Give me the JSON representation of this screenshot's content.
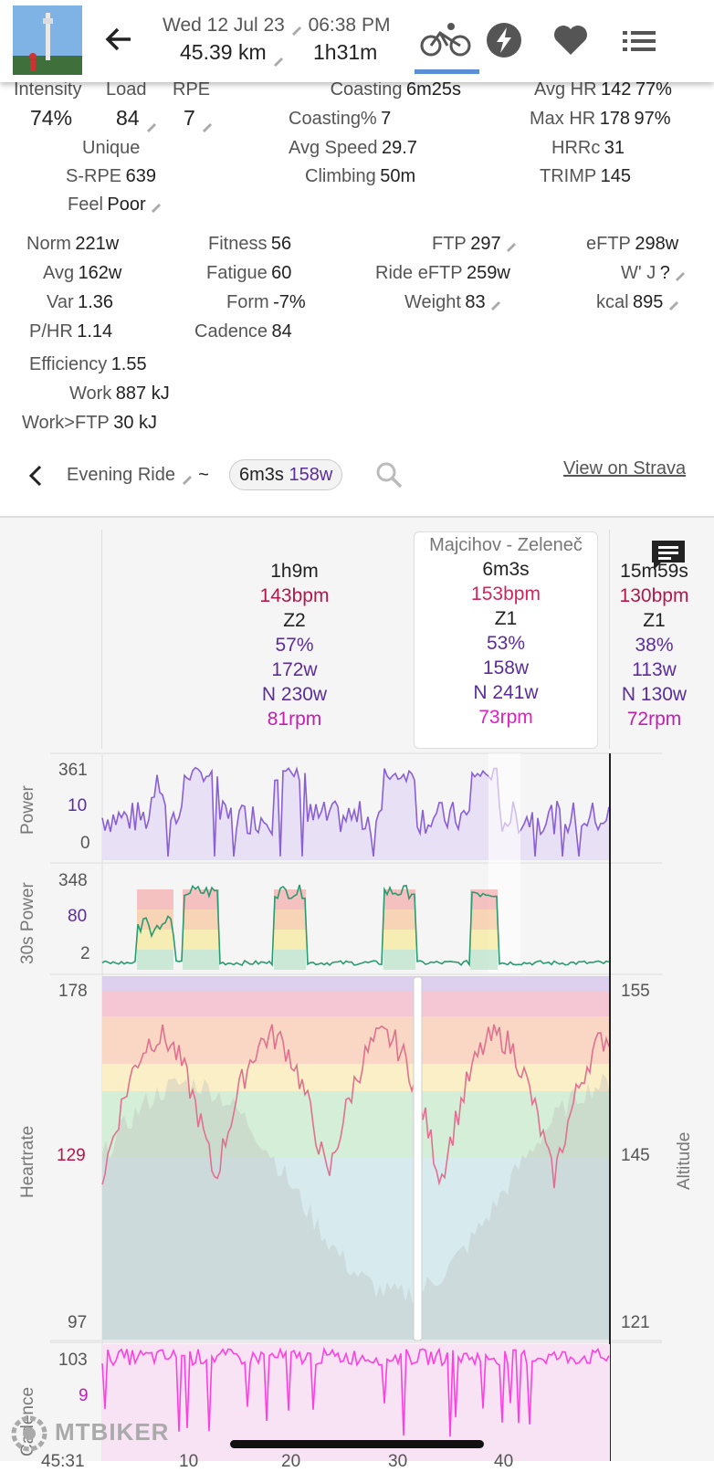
{
  "header": {
    "date": "Wed 12 Jul 23",
    "time": "06:38 PM",
    "distance": "45.39 km",
    "duration": "1h31m",
    "tabs": [
      "ride-icon",
      "power-icon",
      "heart-icon",
      "list-icon"
    ]
  },
  "stats_top": {
    "intensity_label": "Intensity",
    "intensity_value": "74%",
    "load_label": "Load",
    "load_value": "84",
    "rpe_label": "RPE",
    "rpe_value": "7",
    "unique_label": "Unique",
    "srpe_label": "S-RPE",
    "srpe_value": "639",
    "feel_label": "Feel",
    "feel_value": "Poor",
    "coasting_label": "Coasting",
    "coasting_value": "6m25s",
    "coasting_pct_label": "Coasting%",
    "coasting_pct_value": "7",
    "avg_speed_label": "Avg Speed",
    "avg_speed_value": "29.7",
    "climbing_label": "Climbing",
    "climbing_value": "50m",
    "avg_hr_label": "Avg HR",
    "avg_hr_value": "142",
    "avg_hr_pct": "77%",
    "max_hr_label": "Max HR",
    "max_hr_value": "178",
    "max_hr_pct": "97%",
    "hrrc_label": "HRRc",
    "hrrc_value": "31",
    "trimp_label": "TRIMP",
    "trimp_value": "145"
  },
  "stats_mid": {
    "norm_label": "Norm",
    "norm_value": "221w",
    "avg_label": "Avg",
    "avg_value": "162w",
    "var_label": "Var",
    "var_value": "1.36",
    "phr_label": "P/HR",
    "phr_value": "1.14",
    "eff_label": "Efficiency",
    "eff_value": "1.55",
    "work_label": "Work",
    "work_value": "887 kJ",
    "workftp_label": "Work>FTP",
    "workftp_value": "30 kJ",
    "fitness_label": "Fitness",
    "fitness_value": "56",
    "fatigue_label": "Fatigue",
    "fatigue_value": "60",
    "form_label": "Form",
    "form_value": "-7%",
    "cadence_label": "Cadence",
    "cadence_value": "84",
    "ftp_label": "FTP",
    "ftp_value": "297",
    "rideeftp_label": "Ride eFTP",
    "rideeftp_value": "259w",
    "weight_label": "Weight",
    "weight_value": "83",
    "eftp_label": "eFTP",
    "eftp_value": "298w",
    "wj_label": "W' J",
    "wj_value": "?",
    "kcal_label": "kcal",
    "kcal_value": "895"
  },
  "segment_bar": {
    "name": "Evening Ride",
    "tilde": "~",
    "chip_time": "6m3s",
    "chip_power": "158w",
    "strava_link": "View on Strava"
  },
  "laps": [
    {
      "title": "",
      "time": "1h9m",
      "hr": "143bpm",
      "zone": "Z2",
      "pct": "57%",
      "power": "172w",
      "norm": "N 230w",
      "cad": "81rpm"
    },
    {
      "title": "Majcihov - Zeleneč",
      "time": "6m3s",
      "hr": "153bpm",
      "zone": "Z1",
      "pct": "53%",
      "power": "158w",
      "norm": "N 241w",
      "cad": "73rpm"
    },
    {
      "title": "",
      "time": "15m59s",
      "hr": "130bpm",
      "zone": "Z1",
      "pct": "38%",
      "power": "113w",
      "norm": "N 130w",
      "cad": "72rpm"
    }
  ],
  "charts": {
    "power": {
      "label": "Power",
      "max": "361",
      "mid": "10",
      "min": "0"
    },
    "power30": {
      "label": "30s Power",
      "max": "348",
      "mid": "80",
      "min": "2"
    },
    "heartrate": {
      "label": "Heartrate",
      "max": "178",
      "mid": "129",
      "min": "97",
      "alt_label": "Altitude",
      "alt_max": "155",
      "alt_mid": "145",
      "alt_min": "121"
    },
    "cadence": {
      "label": "Cadence",
      "max": "103",
      "mid": "9"
    },
    "x_ticks": [
      "45:31",
      "10",
      "20",
      "30",
      "40"
    ]
  },
  "watermark": "MTBIKER",
  "colors": {
    "hr_text": "#b0174a",
    "power_text": "#5b2d9c",
    "cad_text": "#c020b0",
    "power_line": "#8a5fd6",
    "hr_line": "#e07090",
    "cad_line": "#ff40e0",
    "accent": "#5a8fd6"
  }
}
